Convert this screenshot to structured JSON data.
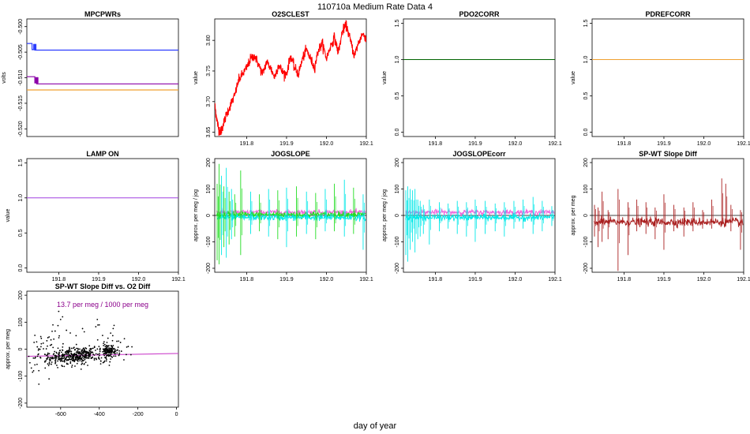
{
  "figure": {
    "title": "110710a   Medium Rate Data 4",
    "xlabel": "day of year"
  },
  "colors": {
    "blue": "#2b3cff",
    "purple": "#8b00a8",
    "orange": "#f0a030",
    "red": "#ff0000",
    "darkgreen": "#006400",
    "violet": "#a040e0",
    "green": "#22dd22",
    "cyan": "#00e8e8",
    "pink": "#ee66dd",
    "brown": "#aa2020",
    "black": "#000000",
    "magenta": "#cc44cc"
  },
  "chart_data": [
    {
      "id": "mpcpwrs",
      "type": "line",
      "title": "MPCPWRs",
      "ylabel": "volts",
      "xlim": [
        191.72,
        192.1
      ],
      "ylim": [
        -0.5215,
        -0.4985
      ],
      "xticks": [],
      "yticks": [
        -0.5,
        -0.505,
        -0.51,
        -0.515,
        -0.52
      ],
      "ytick_labels": [
        "-0.500",
        "-0.505",
        "-0.510",
        "-0.515",
        "-0.520"
      ],
      "series": [
        {
          "color": "blue",
          "x": [
            191.72,
            191.733,
            191.733,
            191.74,
            191.74,
            192.1
          ],
          "y": [
            -0.5033,
            -0.5033,
            -0.5045,
            -0.5045,
            -0.5046,
            -0.5046
          ]
        },
        {
          "color": "purple",
          "x": [
            191.72,
            191.74,
            191.74,
            191.745,
            191.745,
            192.1
          ],
          "y": [
            -0.5098,
            -0.5098,
            -0.511,
            -0.511,
            -0.5112,
            -0.5112
          ]
        },
        {
          "color": "orange",
          "x": [
            191.72,
            192.1
          ],
          "y": [
            -0.5124,
            -0.5124
          ]
        }
      ]
    },
    {
      "id": "o2sclest",
      "type": "line",
      "title": "O2SCLEST",
      "ylabel": "value",
      "xlim": [
        191.72,
        192.1
      ],
      "ylim": [
        3.643,
        3.835
      ],
      "xticks": [
        191.8,
        191.9,
        192.0,
        192.1
      ],
      "xtick_labels": [
        "191.8",
        "191.9",
        "192.0",
        "192.1"
      ],
      "yticks": [
        3.65,
        3.7,
        3.75,
        3.8
      ],
      "ytick_labels": [
        "3.65",
        "3.70",
        "3.75",
        "3.80"
      ],
      "series": [
        {
          "color": "red",
          "x": [
            191.72,
            191.725,
            191.73,
            191.735,
            191.74,
            191.75,
            191.76,
            191.77,
            191.78,
            191.79,
            191.8,
            191.81,
            191.82,
            191.83,
            191.84,
            191.85,
            191.86,
            191.87,
            191.88,
            191.89,
            191.9,
            191.91,
            191.92,
            191.93,
            191.94,
            191.95,
            191.96,
            191.97,
            191.98,
            191.99,
            192.0,
            192.01,
            192.02,
            192.03,
            192.04,
            192.05,
            192.06,
            192.07,
            192.08,
            192.09,
            192.1
          ],
          "y": [
            3.695,
            3.672,
            3.655,
            3.65,
            3.66,
            3.68,
            3.695,
            3.71,
            3.735,
            3.745,
            3.755,
            3.77,
            3.775,
            3.76,
            3.745,
            3.765,
            3.755,
            3.74,
            3.76,
            3.748,
            3.745,
            3.775,
            3.755,
            3.745,
            3.77,
            3.785,
            3.77,
            3.755,
            3.785,
            3.795,
            3.77,
            3.79,
            3.805,
            3.78,
            3.815,
            3.825,
            3.8,
            3.775,
            3.795,
            3.81,
            3.805
          ]
        }
      ]
    },
    {
      "id": "pdo2corr",
      "type": "line",
      "title": "PDO2CORR",
      "ylabel": "value",
      "xlim": [
        191.72,
        192.1
      ],
      "ylim": [
        -0.06,
        1.56
      ],
      "xticks": [
        191.8,
        191.9,
        192.0,
        192.1
      ],
      "xtick_labels": [
        "191.8",
        "191.9",
        "192.0",
        "192.1"
      ],
      "yticks": [
        0.0,
        0.5,
        1.0,
        1.5
      ],
      "ytick_labels": [
        "0.0",
        "0.5",
        "1.0",
        "1.5"
      ],
      "series": [
        {
          "color": "darkgreen",
          "x": [
            191.72,
            192.1
          ],
          "y": [
            1.0,
            1.0
          ]
        }
      ]
    },
    {
      "id": "pdrefcorr",
      "type": "line",
      "title": "PDREFCORR",
      "ylabel": "value",
      "xlim": [
        191.72,
        192.1
      ],
      "ylim": [
        -0.06,
        1.56
      ],
      "xticks": [
        191.8,
        191.9,
        192.0,
        192.1
      ],
      "xtick_labels": [
        "191.8",
        "191.9",
        "192.0",
        "192.1"
      ],
      "yticks": [
        0.0,
        0.5,
        1.0,
        1.5
      ],
      "ytick_labels": [
        "0.0",
        "0.5",
        "1.0",
        "1.5"
      ],
      "series": [
        {
          "color": "orange",
          "x": [
            191.72,
            192.1
          ],
          "y": [
            1.0,
            1.0
          ]
        }
      ]
    },
    {
      "id": "lampon",
      "type": "line",
      "title": "LAMP ON",
      "ylabel": "value",
      "xlim": [
        191.72,
        192.1
      ],
      "ylim": [
        -0.06,
        1.56
      ],
      "xticks": [
        191.8,
        191.9,
        192.0,
        192.1
      ],
      "xtick_labels": [
        "191.8",
        "191.9",
        "192.0",
        "192.1"
      ],
      "yticks": [
        0.0,
        0.5,
        1.0,
        1.5
      ],
      "ytick_labels": [
        "0.0",
        "0.5",
        "1.0",
        "1.5"
      ],
      "series": [
        {
          "color": "violet",
          "x": [
            191.72,
            192.1
          ],
          "y": [
            1.0,
            1.0
          ]
        }
      ]
    },
    {
      "id": "jogslope",
      "type": "line",
      "title": "JOGSLOPE",
      "ylabel": "approx. per meg / jog",
      "xlim": [
        191.72,
        192.1
      ],
      "ylim": [
        -215,
        215
      ],
      "xticks": [
        191.8,
        191.9,
        192.0,
        192.1
      ],
      "xtick_labels": [
        "191.8",
        "191.9",
        "192.0",
        "192.1"
      ],
      "yticks": [
        -200,
        -100,
        0,
        100,
        200
      ],
      "ytick_labels": [
        "-200",
        "-100",
        "0",
        "100",
        "200"
      ],
      "hline": 0,
      "series": [
        {
          "color": "pink",
          "level": 12,
          "noise": 5
        },
        {
          "color": "green",
          "level": 3,
          "noise": 6
        },
        {
          "color": "cyan",
          "level": -8,
          "noise": 6
        }
      ],
      "spikes": {
        "x": [
          191.726,
          191.731,
          191.737,
          191.743,
          191.749,
          191.756,
          191.762,
          191.77,
          191.785,
          191.81,
          191.832,
          191.855,
          191.878,
          191.9,
          191.925,
          191.95,
          191.973,
          191.997,
          192.02,
          192.045,
          192.068,
          192.092
        ],
        "up": [
          120,
          195,
          150,
          110,
          180,
          90,
          100,
          80,
          170,
          90,
          80,
          100,
          95,
          105,
          110,
          90,
          85,
          100,
          120,
          135,
          105,
          80
        ],
        "down": [
          -170,
          -185,
          -150,
          -120,
          -160,
          -110,
          -90,
          -80,
          -150,
          -70,
          -60,
          -80,
          -90,
          -120,
          -80,
          -70,
          -90,
          -60,
          -60,
          -80,
          -70,
          -130
        ],
        "colors": [
          "green",
          "green",
          "cyan",
          "green",
          "cyan",
          "green",
          "cyan",
          "green",
          "green",
          "cyan",
          "green",
          "cyan",
          "green",
          "cyan",
          "green",
          "cyan",
          "green",
          "cyan",
          "green",
          "cyan",
          "green",
          "cyan"
        ]
      }
    },
    {
      "id": "jogslopecorr",
      "type": "line",
      "title": "JOGSLOPEcorr",
      "ylabel": "approx. per meg / jog",
      "xlim": [
        191.72,
        192.1
      ],
      "ylim": [
        -215,
        215
      ],
      "xticks": [
        191.8,
        191.9,
        192.0,
        192.1
      ],
      "xtick_labels": [
        "191.8",
        "191.9",
        "192.0",
        "192.1"
      ],
      "yticks": [
        -200,
        -100,
        0,
        100,
        200
      ],
      "ytick_labels": [
        "-200",
        "-100",
        "0",
        "100",
        "200"
      ],
      "hline": 0,
      "series": [
        {
          "color": "pink",
          "level": 12,
          "noise": 5
        },
        {
          "color": "cyan",
          "level": -8,
          "noise": 6
        }
      ],
      "spikes": {
        "x": [
          191.726,
          191.731,
          191.737,
          191.743,
          191.749,
          191.756,
          191.762,
          191.77,
          191.785,
          191.81,
          191.832,
          191.855,
          191.878,
          191.9,
          191.925,
          191.95,
          191.973,
          191.997,
          192.02,
          192.045,
          192.068,
          192.092
        ],
        "up": [
          95,
          110,
          100,
          95,
          100,
          60,
          55,
          40,
          60,
          50,
          45,
          55,
          50,
          60,
          55,
          45,
          50,
          55,
          60,
          70,
          55,
          35
        ],
        "down": [
          -150,
          -175,
          -130,
          -100,
          -140,
          -90,
          -80,
          -70,
          -110,
          -60,
          -50,
          -70,
          -80,
          -100,
          -70,
          -60,
          -80,
          -50,
          -50,
          -70,
          -60,
          -40
        ],
        "colors": [
          "cyan",
          "cyan",
          "cyan",
          "cyan",
          "cyan",
          "cyan",
          "cyan",
          "cyan",
          "cyan",
          "cyan",
          "cyan",
          "cyan",
          "cyan",
          "cyan",
          "cyan",
          "cyan",
          "cyan",
          "cyan",
          "cyan",
          "cyan",
          "cyan",
          "cyan"
        ]
      }
    },
    {
      "id": "spwtslopediff",
      "type": "line",
      "title": "SP-WT Slope Diff",
      "ylabel": "approx. per meg",
      "xlim": [
        191.72,
        192.1
      ],
      "ylim": [
        -215,
        215
      ],
      "xticks": [
        191.8,
        191.9,
        192.0,
        192.1
      ],
      "xtick_labels": [
        "191.8",
        "191.9",
        "192.0",
        "192.1"
      ],
      "yticks": [
        -200,
        -100,
        0,
        100,
        200
      ],
      "ytick_labels": [
        "-200",
        "-100",
        "0",
        "100",
        "200"
      ],
      "hline": 0,
      "series": [
        {
          "color": "brown",
          "level": -25,
          "noise": 8
        }
      ],
      "spikes": {
        "x": [
          191.726,
          191.735,
          191.745,
          191.76,
          191.785,
          191.81,
          191.832,
          191.855,
          191.878,
          191.9,
          191.925,
          191.95,
          191.973,
          191.997,
          192.02,
          192.045,
          192.055,
          192.068,
          192.092
        ],
        "up": [
          40,
          30,
          90,
          20,
          100,
          50,
          60,
          50,
          30,
          80,
          40,
          30,
          50,
          20,
          60,
          140,
          120,
          40,
          20
        ],
        "down": [
          -80,
          -120,
          -100,
          -90,
          -210,
          -150,
          -60,
          -70,
          -90,
          -130,
          -60,
          -80,
          -60,
          -50,
          -50,
          -40,
          -30,
          -60,
          -130
        ],
        "colors": [
          "brown",
          "brown",
          "brown",
          "brown",
          "brown",
          "brown",
          "brown",
          "brown",
          "brown",
          "brown",
          "brown",
          "brown",
          "brown",
          "brown",
          "brown",
          "brown",
          "brown",
          "brown",
          "brown"
        ]
      }
    },
    {
      "id": "spwtvso2",
      "type": "scatter",
      "title": "SP-WT Slope Diff vs. O2 Diff",
      "ylabel": "approx. per meg",
      "xlim": [
        -775,
        10
      ],
      "ylim": [
        -215,
        215
      ],
      "xticks": [
        -600,
        -400,
        -200,
        0
      ],
      "xtick_labels": [
        "-600",
        "-400",
        "-200",
        "0"
      ],
      "yticks": [
        -200,
        -100,
        0,
        100,
        200
      ],
      "ytick_labels": [
        "-200",
        "-100",
        "0",
        "100",
        "200"
      ],
      "annotation": "13.7 per meg / 1000 per meg",
      "fit": {
        "slope": 0.0137,
        "intercept": -16,
        "color": "magenta"
      },
      "clusters": [
        {
          "cx": -560,
          "cy": -28,
          "sx": 60,
          "sy": 15,
          "n": 260
        },
        {
          "cx": -470,
          "cy": -15,
          "sx": 25,
          "sy": 10,
          "n": 60
        },
        {
          "cx": -350,
          "cy": -5,
          "sx": 20,
          "sy": 12,
          "n": 120
        },
        {
          "cx": -420,
          "cy": -20,
          "sx": 70,
          "sy": 18,
          "n": 80
        },
        {
          "cx": -650,
          "cy": 5,
          "sx": 70,
          "sy": 40,
          "n": 45
        },
        {
          "cx": -380,
          "cy": 30,
          "sx": 60,
          "sy": 35,
          "n": 20
        },
        {
          "cx": -720,
          "cy": -40,
          "sx": 30,
          "sy": 40,
          "n": 15
        }
      ],
      "outliers": [
        [
          -610,
          140
        ],
        [
          -590,
          120
        ],
        [
          -640,
          90
        ],
        [
          -600,
          110
        ],
        [
          -700,
          40
        ],
        [
          -740,
          -80
        ],
        [
          -660,
          -110
        ],
        [
          -620,
          -60
        ],
        [
          -550,
          60
        ],
        [
          -520,
          50
        ],
        [
          -410,
          110
        ],
        [
          -400,
          90
        ],
        [
          -300,
          30
        ],
        [
          -260,
          -20
        ],
        [
          -250,
          10
        ],
        [
          -380,
          -50
        ],
        [
          -460,
          -60
        ],
        [
          -700,
          20
        ],
        [
          -730,
          -30
        ],
        [
          -680,
          -70
        ],
        [
          -570,
          70
        ],
        [
          -540,
          -60
        ],
        [
          -330,
          50
        ],
        [
          -290,
          25
        ]
      ]
    }
  ]
}
